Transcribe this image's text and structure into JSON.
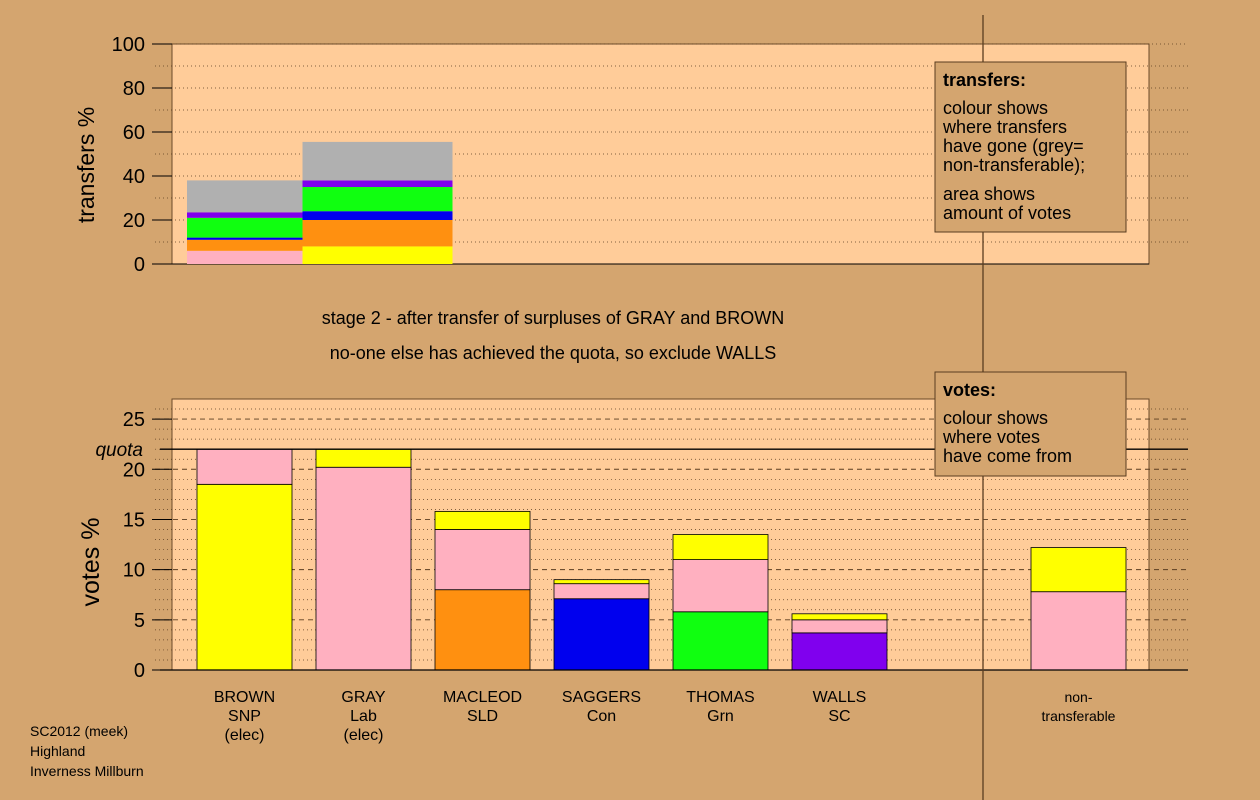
{
  "colors": {
    "background": "#d4a56f",
    "panel": "#ffcc99",
    "legend_box": "#d4a56f",
    "grey_nontransferable": "#b0b0b0",
    "BROWN": "#ffff00",
    "GRAY": "#ffb0c0",
    "MACLEOD": "#ff9010",
    "SAGGERS": "#0000ee",
    "THOMAS": "#10ff10",
    "WALLS": "#8000ee"
  },
  "headings": {
    "line1": "stage 2 - after transfer of surpluses of GRAY and BROWN",
    "line2": "no-one else has achieved the quota, so exclude WALLS"
  },
  "legends": {
    "transfers": {
      "title": "transfers:",
      "lines": [
        "colour shows",
        "where transfers",
        "have gone (grey=",
        "non-transferable);"
      ],
      "lines2": [
        "area shows",
        "amount of votes"
      ]
    },
    "votes": {
      "title": "votes:",
      "lines": [
        "colour shows",
        "where votes",
        "have come from"
      ]
    }
  },
  "footer": {
    "line1": "SC2012 (meek)",
    "line2": "Highland",
    "line3": "Inverness Millburn"
  },
  "chart_data": [
    {
      "type": "bar",
      "name": "transfers",
      "ylabel": "transfers %",
      "ylim": [
        0,
        100
      ],
      "yticks": [
        0,
        20,
        40,
        60,
        80,
        100
      ],
      "grid": "dotted every 10",
      "stacked": true,
      "note": "bar width proportional to surplus size",
      "bars": [
        {
          "from": "GRAY",
          "relative_width": 0.77,
          "segments": [
            {
              "to": "GRAY",
              "value": 6,
              "color": "#ffb0c0"
            },
            {
              "to": "MACLEOD",
              "value": 5,
              "color": "#ff9010"
            },
            {
              "to": "SAGGERS",
              "value": 1,
              "color": "#0000ee"
            },
            {
              "to": "THOMAS",
              "value": 9,
              "color": "#10ff10"
            },
            {
              "to": "WALLS",
              "value": 2.5,
              "color": "#8000ee"
            },
            {
              "to": "non-transferable",
              "value": 14.5,
              "color": "#b0b0b0"
            }
          ]
        },
        {
          "from": "BROWN",
          "relative_width": 1.0,
          "segments": [
            {
              "to": "BROWN",
              "value": 8,
              "color": "#ffff00"
            },
            {
              "to": "MACLEOD",
              "value": 12,
              "color": "#ff9010"
            },
            {
              "to": "SAGGERS",
              "value": 4,
              "color": "#0000ee"
            },
            {
              "to": "THOMAS",
              "value": 11,
              "color": "#10ff10"
            },
            {
              "to": "WALLS",
              "value": 3,
              "color": "#8000ee"
            },
            {
              "to": "non-transferable",
              "value": 17.5,
              "color": "#b0b0b0"
            }
          ]
        }
      ]
    },
    {
      "type": "bar",
      "name": "votes",
      "ylabel": "votes %",
      "ylim": [
        0,
        27
      ],
      "yticks": [
        0,
        5,
        10,
        15,
        20,
        25
      ],
      "quota": 22,
      "quota_label": "quota",
      "stacked": true,
      "candidates": [
        {
          "name": "BROWN",
          "lines": [
            "BROWN",
            "SNP",
            "(elec)"
          ],
          "segments": [
            {
              "from": "BROWN",
              "value": 18.5
            },
            {
              "from": "GRAY",
              "value": 3.5
            }
          ]
        },
        {
          "name": "GRAY",
          "lines": [
            "GRAY",
            "Lab",
            "(elec)"
          ],
          "segments": [
            {
              "from": "GRAY",
              "value": 20.2
            },
            {
              "from": "BROWN",
              "value": 1.8
            }
          ]
        },
        {
          "name": "MACLEOD",
          "lines": [
            "MACLEOD",
            "SLD"
          ],
          "segments": [
            {
              "from": "MACLEOD",
              "value": 8
            },
            {
              "from": "GRAY",
              "value": 6
            },
            {
              "from": "BROWN",
              "value": 1.8
            }
          ]
        },
        {
          "name": "SAGGERS",
          "lines": [
            "SAGGERS",
            "Con"
          ],
          "segments": [
            {
              "from": "SAGGERS",
              "value": 7.1
            },
            {
              "from": "GRAY",
              "value": 1.5
            },
            {
              "from": "BROWN",
              "value": 0.4
            }
          ]
        },
        {
          "name": "THOMAS",
          "lines": [
            "THOMAS",
            "Grn"
          ],
          "segments": [
            {
              "from": "THOMAS",
              "value": 5.8
            },
            {
              "from": "GRAY",
              "value": 5.2
            },
            {
              "from": "BROWN",
              "value": 2.5
            }
          ]
        },
        {
          "name": "WALLS",
          "lines": [
            "WALLS",
            "SC"
          ],
          "segments": [
            {
              "from": "WALLS",
              "value": 3.7
            },
            {
              "from": "GRAY",
              "value": 1.3
            },
            {
              "from": "BROWN",
              "value": 0.6
            }
          ]
        },
        {
          "name": "non-transferable",
          "lines": [
            "non-",
            "transferable"
          ],
          "separated": true,
          "segments": [
            {
              "from": "GRAY",
              "value": 7.8
            },
            {
              "from": "BROWN",
              "value": 4.4
            }
          ]
        }
      ]
    }
  ]
}
